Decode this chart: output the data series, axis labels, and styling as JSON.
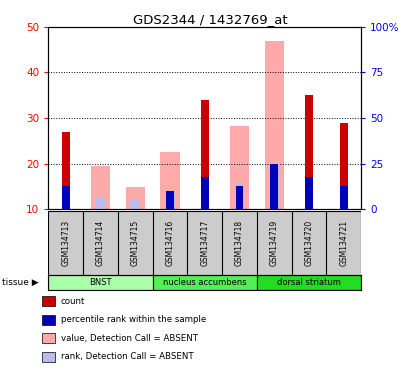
{
  "title": "GDS2344 / 1432769_at",
  "samples": [
    "GSM134713",
    "GSM134714",
    "GSM134715",
    "GSM134716",
    "GSM134717",
    "GSM134718",
    "GSM134719",
    "GSM134720",
    "GSM134721"
  ],
  "tissues": [
    {
      "name": "BNST",
      "start": 0,
      "end": 3
    },
    {
      "name": "nucleus accumbens",
      "start": 3,
      "end": 6
    },
    {
      "name": "dorsal striatum",
      "start": 6,
      "end": 9
    }
  ],
  "tissue_colors": [
    "#aaffaa",
    "#55ee55",
    "#22dd22"
  ],
  "red_bars": [
    27,
    0,
    0,
    0,
    34,
    0,
    0,
    35,
    29
  ],
  "blue_bars": [
    15,
    0,
    0,
    14,
    17,
    15,
    20,
    17,
    15
  ],
  "pink_bars": [
    0,
    19.5,
    14.8,
    22.5,
    0,
    28.2,
    47.0,
    0,
    0
  ],
  "lavender_bars": [
    0,
    12.5,
    12.0,
    14.0,
    0,
    15.5,
    20.0,
    0,
    0
  ],
  "left_ylim": [
    10,
    50
  ],
  "left_yticks": [
    10,
    20,
    30,
    40,
    50
  ],
  "right_ylim": [
    0,
    100
  ],
  "right_yticks": [
    0,
    25,
    50,
    75,
    100
  ],
  "right_yticklabels": [
    "0",
    "25",
    "50",
    "75",
    "100%"
  ],
  "red_color": "#cc0000",
  "blue_color": "#0000bb",
  "pink_color": "#ffaaaa",
  "lavender_color": "#bbbbee",
  "legend_items": [
    {
      "color": "#cc0000",
      "label": "count"
    },
    {
      "color": "#0000bb",
      "label": "percentile rank within the sample"
    },
    {
      "color": "#ffaaaa",
      "label": "value, Detection Call = ABSENT"
    },
    {
      "color": "#bbbbee",
      "label": "rank, Detection Call = ABSENT"
    }
  ],
  "bg_color": "#ffffff",
  "grid_color": "#000000",
  "sample_label_bg": "#cccccc"
}
